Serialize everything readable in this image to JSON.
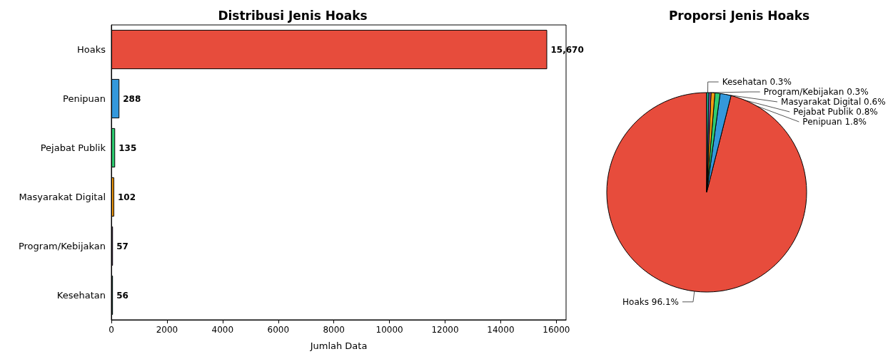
{
  "chart_data": [
    {
      "type": "bar",
      "title": "Distribusi Jenis Hoaks",
      "xlabel": "Jumlah Data",
      "orientation": "horizontal",
      "categories": [
        "Hoaks",
        "Penipuan",
        "Pejabat Publik",
        "Masyarakat Digital",
        "Program/Kebijakan",
        "Kesehatan"
      ],
      "values": [
        15670,
        288,
        135,
        102,
        57,
        56
      ],
      "colors": [
        "#e74c3c",
        "#3498db",
        "#2ecc71",
        "#f39c12",
        "#9b59b6",
        "#1abc9c"
      ],
      "value_labels": [
        "15,670",
        "288",
        "135",
        "102",
        "57",
        "56"
      ],
      "xlim": [
        0,
        16350
      ],
      "xticks": [
        0,
        2000,
        4000,
        6000,
        8000,
        10000,
        12000,
        14000,
        16000
      ],
      "grid": false,
      "legend": false
    },
    {
      "type": "pie",
      "title": "Proporsi Jenis Hoaks",
      "categories": [
        "Hoaks",
        "Penipuan",
        "Pejabat Publik",
        "Masyarakat Digital",
        "Program/Kebijakan",
        "Kesehatan"
      ],
      "values": [
        96.08,
        1.77,
        0.83,
        0.63,
        0.35,
        0.34
      ],
      "colors": [
        "#e74c3c",
        "#3498db",
        "#2ecc71",
        "#f39c12",
        "#9b59b6",
        "#1abc9c"
      ],
      "value_labels": [
        "96.1%",
        "1.8%",
        "0.8%",
        "0.6%",
        "0.3%",
        "0.3%"
      ],
      "legend": false
    }
  ]
}
